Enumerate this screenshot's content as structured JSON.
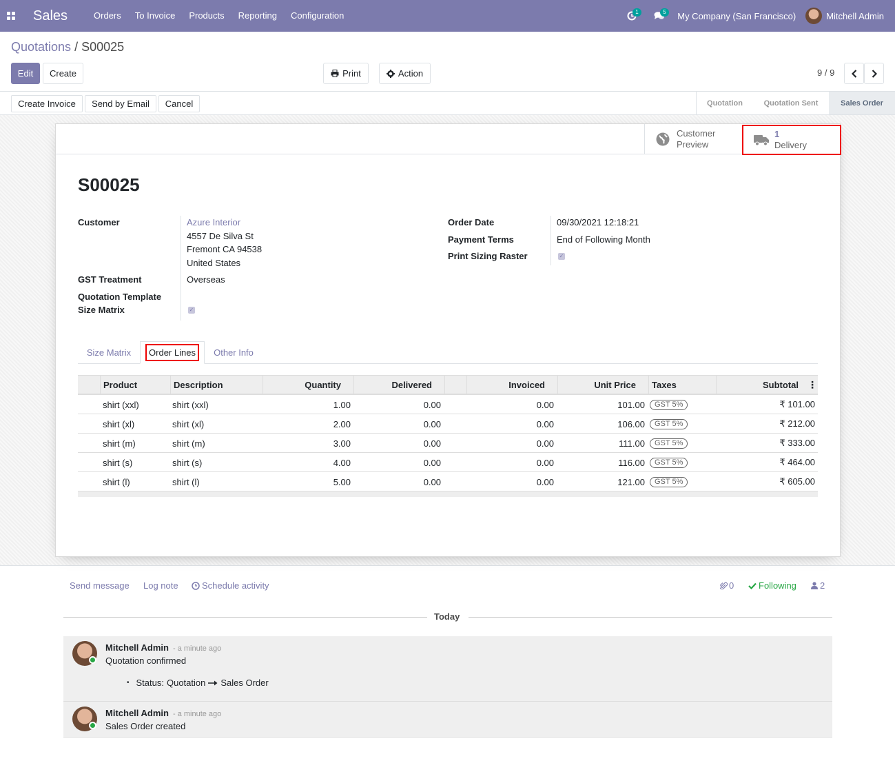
{
  "navbar": {
    "app_name": "Sales",
    "menu": [
      "Orders",
      "To Invoice",
      "Products",
      "Reporting",
      "Configuration"
    ],
    "activity_count": "1",
    "message_count": "5",
    "company": "My Company (San Francisco)",
    "user": "Mitchell Admin",
    "bg_color": "#7c7bad"
  },
  "breadcrumb": {
    "parent": "Quotations",
    "separator": "/",
    "current": "S00025"
  },
  "control": {
    "edit": "Edit",
    "create": "Create",
    "print": "Print",
    "action": "Action",
    "pager": "9 / 9"
  },
  "header_buttons": {
    "create_invoice": "Create Invoice",
    "send_email": "Send by Email",
    "cancel": "Cancel"
  },
  "stages": [
    "Quotation",
    "Quotation Sent",
    "Sales Order"
  ],
  "smart_buttons": {
    "customer_preview_1": "Customer",
    "customer_preview_2": "Preview",
    "delivery_count": "1",
    "delivery_label": "Delivery"
  },
  "form": {
    "title": "S00025",
    "customer_label": "Customer",
    "customer_name": "Azure Interior",
    "address": [
      "4557 De Silva St",
      "Fremont CA 94538",
      "United States"
    ],
    "gst_label": "GST Treatment",
    "gst_value": "Overseas",
    "template_label": "Quotation Template",
    "size_matrix_label": "Size Matrix",
    "order_date_label": "Order Date",
    "order_date": "09/30/2021 12:18:21",
    "payment_terms_label": "Payment Terms",
    "payment_terms": "End of Following Month",
    "print_sizing_label": "Print Sizing Raster"
  },
  "tabs": [
    "Size Matrix",
    "Order Lines",
    "Other Info"
  ],
  "table": {
    "headers": [
      "Product",
      "Description",
      "Quantity",
      "Delivered",
      "Invoiced",
      "Unit Price",
      "Taxes",
      "Subtotal"
    ],
    "rows": [
      {
        "product": "shirt (xxl)",
        "description": "shirt (xxl)",
        "quantity": "1.00",
        "delivered": "0.00",
        "invoiced": "0.00",
        "unit_price": "101.00",
        "tax": "GST 5%",
        "subtotal": "₹ 101.00"
      },
      {
        "product": "shirt (xl)",
        "description": "shirt (xl)",
        "quantity": "2.00",
        "delivered": "0.00",
        "invoiced": "0.00",
        "unit_price": "106.00",
        "tax": "GST 5%",
        "subtotal": "₹ 212.00"
      },
      {
        "product": "shirt (m)",
        "description": "shirt (m)",
        "quantity": "3.00",
        "delivered": "0.00",
        "invoiced": "0.00",
        "unit_price": "111.00",
        "tax": "GST 5%",
        "subtotal": "₹ 333.00"
      },
      {
        "product": "shirt (s)",
        "description": "shirt (s)",
        "quantity": "4.00",
        "delivered": "0.00",
        "invoiced": "0.00",
        "unit_price": "116.00",
        "tax": "GST 5%",
        "subtotal": "₹ 464.00"
      },
      {
        "product": "shirt (l)",
        "description": "shirt (l)",
        "quantity": "5.00",
        "delivered": "0.00",
        "invoiced": "0.00",
        "unit_price": "121.00",
        "tax": "GST 5%",
        "subtotal": "₹ 605.00"
      }
    ]
  },
  "chatter": {
    "send_message": "Send message",
    "log_note": "Log note",
    "schedule_activity": "Schedule activity",
    "attachments": "0",
    "following": "Following",
    "followers": "2",
    "today": "Today",
    "messages": [
      {
        "author": "Mitchell Admin",
        "time": "- a minute ago",
        "body": "Quotation confirmed",
        "tracking_field": "Status:",
        "tracking_old": "Quotation",
        "tracking_new": "Sales Order"
      },
      {
        "author": "Mitchell Admin",
        "time": "- a minute ago",
        "body": "Sales Order created"
      }
    ]
  }
}
